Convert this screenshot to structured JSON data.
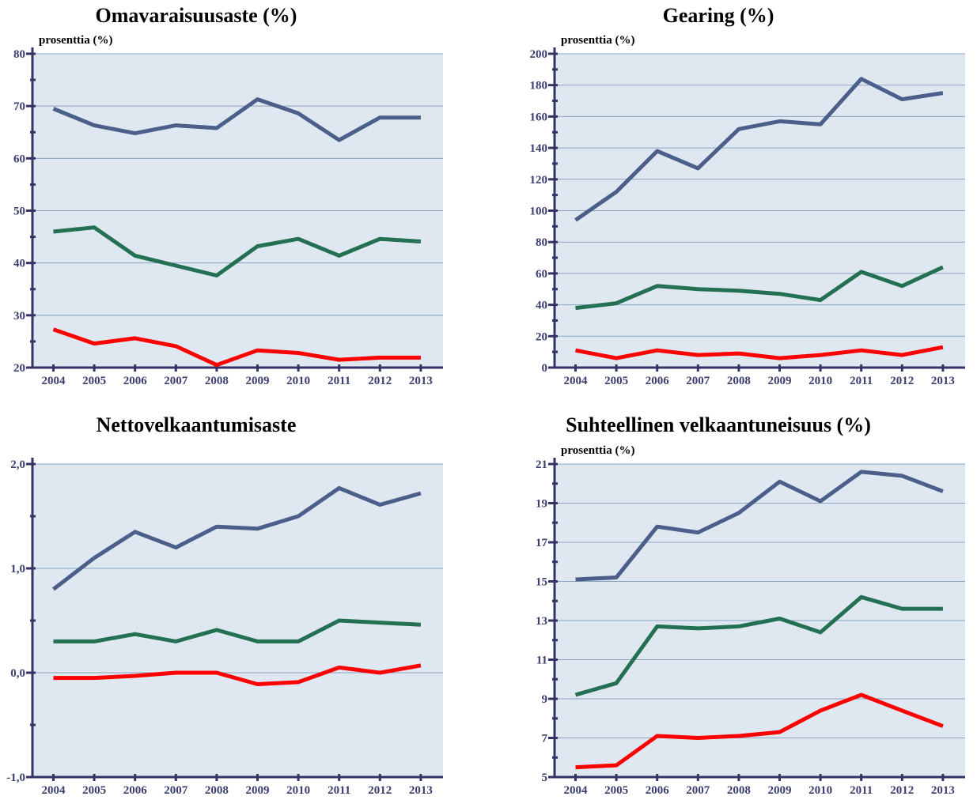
{
  "colors": {
    "plot_background": "#dfe8f0",
    "gridline": "#8aa3bf",
    "axis": "#333366",
    "tick_text": "#3a3f6e",
    "series_blue": "#4c5e8a",
    "series_green": "#237052",
    "series_red": "#ff0000"
  },
  "chart_data": [
    {
      "type": "line",
      "title": "Omavaraisuusaste (%)",
      "ylabel": "prosenttia (%)",
      "categories": [
        "2004",
        "2005",
        "2006",
        "2007",
        "2008",
        "2009",
        "2010",
        "2011",
        "2012",
        "2013"
      ],
      "ylim": [
        20,
        80
      ],
      "yticks": [
        20,
        30,
        40,
        50,
        60,
        70,
        80
      ],
      "ytick_labels": [
        "20",
        "30",
        "40",
        "50",
        "60",
        "70",
        "80"
      ],
      "series": [
        {
          "color": "#4c5e8a",
          "values": [
            69.5,
            66.3,
            64.8,
            66.3,
            65.8,
            71.3,
            68.6,
            63.5,
            67.8,
            67.8
          ]
        },
        {
          "color": "#237052",
          "values": [
            46.0,
            46.8,
            41.4,
            39.5,
            37.6,
            43.2,
            44.6,
            41.4,
            44.6,
            44.1
          ]
        },
        {
          "color": "#ff0000",
          "values": [
            27.3,
            24.6,
            25.6,
            24.1,
            20.5,
            23.3,
            22.8,
            21.5,
            21.9,
            21.9
          ]
        }
      ]
    },
    {
      "type": "line",
      "title": "Gearing (%)",
      "ylabel": "prosenttia (%)",
      "categories": [
        "2004",
        "2005",
        "2006",
        "2007",
        "2008",
        "2009",
        "2010",
        "2011",
        "2012",
        "2013"
      ],
      "ylim": [
        0,
        200
      ],
      "yticks": [
        0,
        20,
        40,
        60,
        80,
        100,
        120,
        140,
        160,
        180,
        200
      ],
      "ytick_labels": [
        "0",
        "20",
        "40",
        "60",
        "80",
        "100",
        "120",
        "140",
        "160",
        "180",
        "200"
      ],
      "series": [
        {
          "color": "#4c5e8a",
          "values": [
            94,
            112,
            138,
            127,
            152,
            157,
            155,
            184,
            171,
            175
          ]
        },
        {
          "color": "#237052",
          "values": [
            38,
            41,
            52,
            50,
            49,
            47,
            43,
            61,
            52,
            64
          ]
        },
        {
          "color": "#ff0000",
          "values": [
            11,
            6,
            11,
            8,
            9,
            6,
            8,
            11,
            8,
            13
          ]
        }
      ]
    },
    {
      "type": "line",
      "title": "Nettovelkaantumisaste",
      "ylabel": "",
      "categories": [
        "2004",
        "2005",
        "2006",
        "2007",
        "2008",
        "2009",
        "2010",
        "2011",
        "2012",
        "2013"
      ],
      "ylim": [
        -1.0,
        2.0
      ],
      "yticks": [
        -1.0,
        0.0,
        1.0,
        2.0
      ],
      "ytick_labels": [
        "-1,0",
        "0,0",
        "1,0",
        "2,0"
      ],
      "series": [
        {
          "color": "#4c5e8a",
          "values": [
            0.8,
            1.1,
            1.35,
            1.2,
            1.4,
            1.38,
            1.5,
            1.77,
            1.61,
            1.72
          ]
        },
        {
          "color": "#237052",
          "values": [
            0.3,
            0.3,
            0.37,
            0.3,
            0.41,
            0.3,
            0.3,
            0.5,
            0.48,
            0.46
          ]
        },
        {
          "color": "#ff0000",
          "values": [
            -0.05,
            -0.05,
            -0.03,
            0.0,
            0.0,
            -0.11,
            -0.09,
            0.05,
            0.0,
            0.07
          ]
        }
      ]
    },
    {
      "type": "line",
      "title": "Suhteellinen velkaantuneisuus (%)",
      "ylabel": "prosenttia (%)",
      "categories": [
        "2004",
        "2005",
        "2006",
        "2007",
        "2008",
        "2009",
        "2010",
        "2011",
        "2012",
        "2013"
      ],
      "ylim": [
        5,
        21
      ],
      "yticks": [
        5,
        7,
        9,
        11,
        13,
        15,
        17,
        19,
        21
      ],
      "ytick_labels": [
        "5",
        "7",
        "9",
        "11",
        "13",
        "15",
        "17",
        "19",
        "21"
      ],
      "series": [
        {
          "color": "#4c5e8a",
          "values": [
            15.1,
            15.2,
            17.8,
            17.5,
            18.5,
            20.1,
            19.1,
            20.6,
            20.4,
            19.6
          ]
        },
        {
          "color": "#237052",
          "values": [
            9.2,
            9.8,
            12.7,
            12.6,
            12.7,
            13.1,
            12.4,
            14.2,
            13.6,
            13.6
          ]
        },
        {
          "color": "#ff0000",
          "values": [
            5.5,
            5.6,
            7.1,
            7.0,
            7.1,
            7.3,
            8.4,
            9.2,
            8.4,
            7.6
          ]
        }
      ]
    }
  ]
}
